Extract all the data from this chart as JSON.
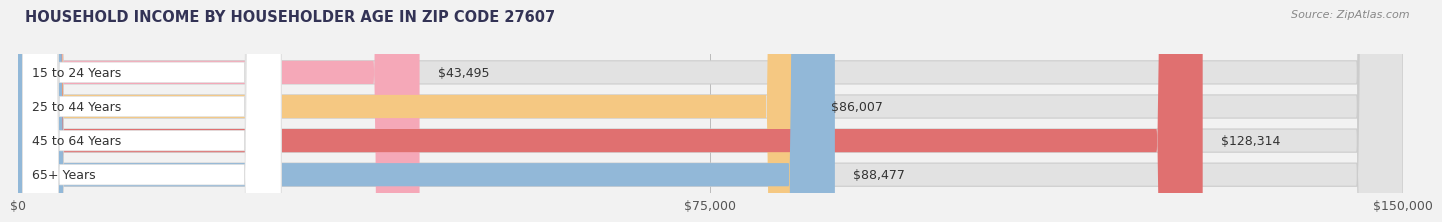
{
  "title": "HOUSEHOLD INCOME BY HOUSEHOLDER AGE IN ZIP CODE 27607",
  "source": "Source: ZipAtlas.com",
  "categories": [
    "15 to 24 Years",
    "25 to 44 Years",
    "45 to 64 Years",
    "65+ Years"
  ],
  "values": [
    43495,
    86007,
    128314,
    88477
  ],
  "bar_colors": [
    "#f5a8b8",
    "#f5c882",
    "#e07070",
    "#92b8d8"
  ],
  "background_color": "#f2f2f2",
  "bar_bg_color": "#e2e2e2",
  "xlim": [
    0,
    150000
  ],
  "xticks": [
    0,
    75000,
    150000
  ],
  "xtick_labels": [
    "$0",
    "$75,000",
    "$150,000"
  ],
  "title_fontsize": 10.5,
  "source_fontsize": 8,
  "label_fontsize": 9,
  "value_fontsize": 9,
  "tick_fontsize": 9
}
